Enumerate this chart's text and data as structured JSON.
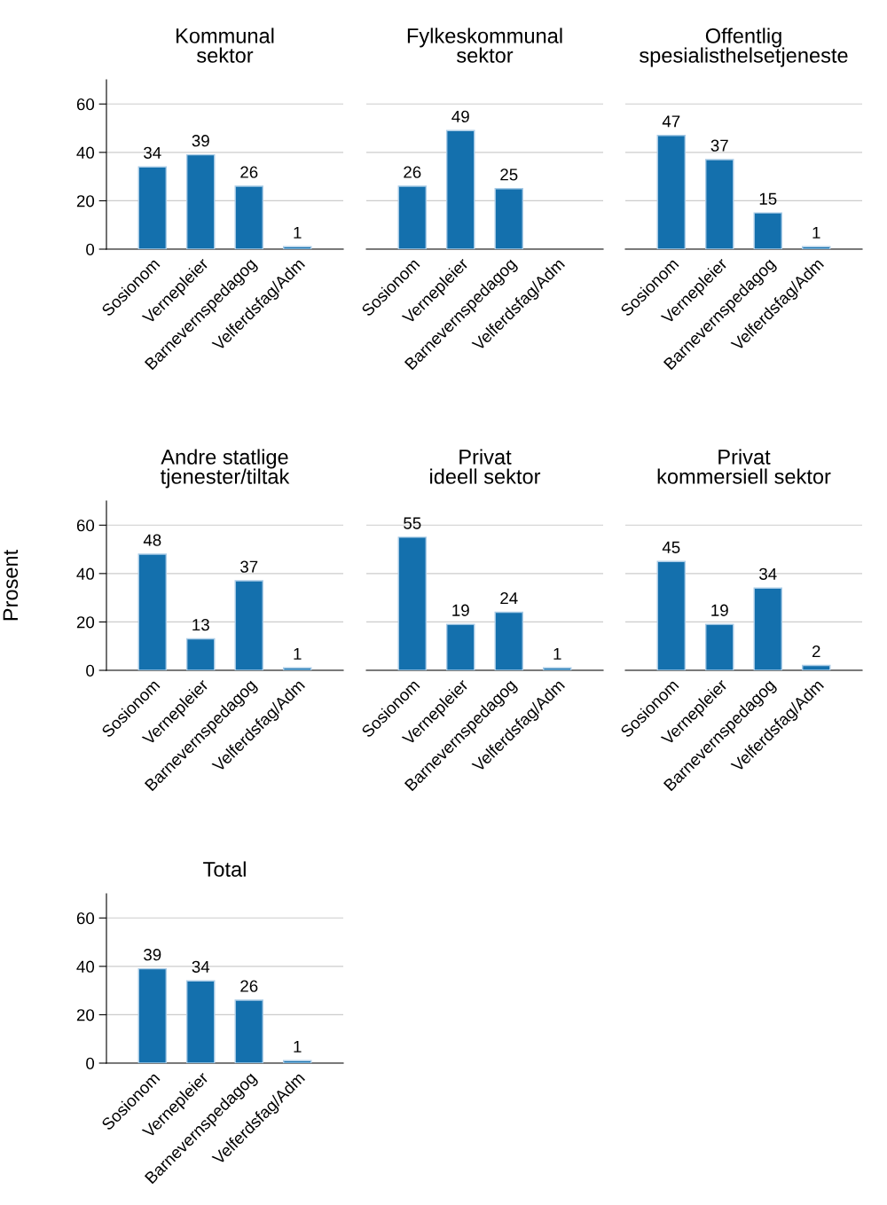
{
  "chart_data": [
    {
      "type": "bar",
      "title": "Kommunal\nsektor",
      "categories": [
        "Sosionom",
        "Vernepleier",
        "Barnevernspedagog",
        "Velferdsfag/Adm"
      ],
      "values": [
        34,
        39,
        26,
        1
      ],
      "color": "#1470ad",
      "ylim": [
        0,
        70
      ],
      "yticks": [
        0,
        20,
        40,
        60
      ],
      "grid": "y",
      "data_labels": true
    },
    {
      "type": "bar",
      "title": "Fylkeskommunal\nsektor",
      "categories": [
        "Sosionom",
        "Vernepleier",
        "Barnevernspedagog",
        "Velferdsfag/Adm"
      ],
      "values": [
        26,
        49,
        25,
        null
      ],
      "color": "#1470ad",
      "yticks": [
        0,
        20,
        40,
        60
      ],
      "grid": "y",
      "data_labels": true,
      "tick_labels": "x"
    },
    {
      "type": "bar",
      "title": "Offentlig\nspesialisthelsetjeneste",
      "categories": [
        "Sosionom",
        "Vernepleier",
        "Barnevernspedagog",
        "Velferdsfag/Adm"
      ],
      "values": [
        47,
        37,
        15,
        1
      ],
      "color": "#1470ad",
      "yticks": [
        0,
        20,
        40,
        60
      ],
      "grid": "y",
      "data_labels": true,
      "tick_labels": "x"
    },
    {
      "type": "bar",
      "title": "Andre statlige\ntjenester/tiltak",
      "ylabel": "Prosent",
      "categories": [
        "Sosionom",
        "Vernepleier",
        "Barnevernspedagog",
        "Velferdsfag/Adm"
      ],
      "values": [
        48,
        13,
        37,
        1
      ],
      "color": "#1470ad",
      "ylim": [
        0,
        70
      ],
      "yticks": [
        0,
        20,
        40,
        60
      ],
      "grid": "y",
      "data_labels": true
    },
    {
      "type": "bar",
      "title": "Privat\nideell sektor",
      "categories": [
        "Sosionom",
        "Vernepleier",
        "Barnevernspedagog",
        "Velferdsfag/Adm"
      ],
      "values": [
        55,
        19,
        24,
        1
      ],
      "color": "#1470ad",
      "yticks": [
        0,
        20,
        40,
        60
      ],
      "grid": "y",
      "data_labels": true,
      "tick_labels": "x"
    },
    {
      "type": "bar",
      "title": "Privat\nkommersiell sektor",
      "categories": [
        "Sosionom",
        "Vernepleier",
        "Barnevernspedagog",
        "Velferdsfag/Adm"
      ],
      "values": [
        45,
        19,
        34,
        2
      ],
      "color": "#1470ad",
      "yticks": [
        0,
        20,
        40,
        60
      ],
      "grid": "y",
      "data_labels": true,
      "tick_labels": "x"
    },
    {
      "type": "bar",
      "title": "Total",
      "categories": [
        "Sosionom",
        "Vernepleier",
        "Barnevernspedagog",
        "Velferdsfag/Adm"
      ],
      "values": [
        39,
        34,
        26,
        1
      ],
      "color": "#1470ad",
      "ylim": [
        0,
        70
      ],
      "yticks": [
        0,
        20,
        40,
        60
      ],
      "grid": "y",
      "data_labels": true
    }
  ]
}
